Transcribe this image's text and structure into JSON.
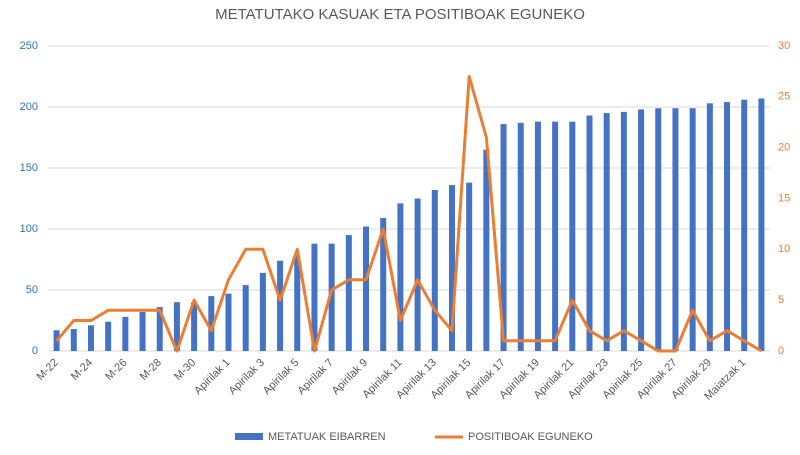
{
  "chart_data": {
    "type": "bar-line",
    "title": "METATUTAKO KASUAK ETA POSITIBOAK EGUNEKO",
    "categories": [
      "M-22",
      null,
      "M-24",
      null,
      "M-26",
      null,
      "M-28",
      null,
      "M-30",
      null,
      "Apirilak 1",
      null,
      "Apirilak 3",
      null,
      "Apirilak 5",
      null,
      "Apirilak 7",
      null,
      "Apirilak 9",
      null,
      "Apirilak 11",
      null,
      "Apirilak 13",
      null,
      "Apirilak 15",
      null,
      "Apirilak 17",
      null,
      "Apirilak 19",
      null,
      "Apirilak 21",
      null,
      "Apirilak 23",
      null,
      "Apirilak 25",
      null,
      "Apirilak 27",
      null,
      "Apirilak 29",
      null,
      "Maiatzak 1",
      null
    ],
    "series": [
      {
        "name": "METATUAK EIBARREN",
        "color": "#4472c4",
        "type": "bar",
        "values": [
          17,
          18,
          21,
          24,
          28,
          32,
          36,
          40,
          40,
          45,
          47,
          54,
          64,
          74,
          78,
          88,
          88,
          95,
          102,
          109,
          121,
          125,
          132,
          136,
          138,
          165,
          186,
          187,
          188,
          188,
          188,
          193,
          195,
          196,
          198,
          199,
          199,
          199,
          203,
          204,
          206,
          207
        ]
      },
      {
        "name": "POSITIBOAK EGUNEKO",
        "color": "#ed7d31",
        "type": "line",
        "axis": "y2",
        "values": [
          1,
          3,
          3,
          4,
          4,
          4,
          4,
          0,
          5,
          2,
          7,
          10,
          10,
          5,
          10,
          0,
          6,
          7,
          7,
          12,
          3,
          7,
          4,
          2,
          27,
          21,
          1,
          1,
          1,
          1,
          5,
          2,
          1,
          2,
          1,
          0,
          0,
          4,
          1,
          2,
          1,
          0
        ]
      }
    ],
    "ylim": [
      0,
      250
    ],
    "yticks": [
      0,
      50,
      100,
      150,
      200,
      250
    ],
    "y2lim": [
      0,
      30
    ],
    "y2ticks": [
      0,
      5,
      10,
      15,
      20,
      25,
      30
    ],
    "grid": true,
    "legend": "bottom"
  }
}
